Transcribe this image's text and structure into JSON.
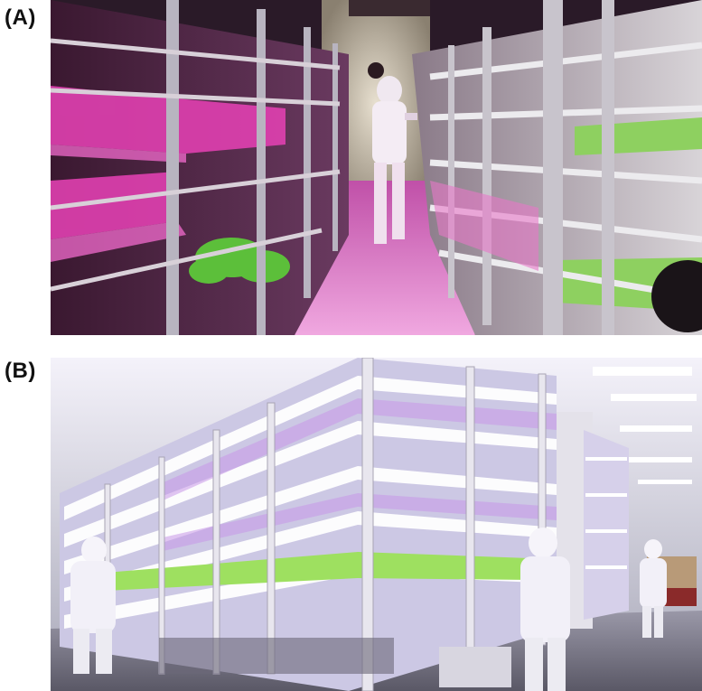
{
  "figure": {
    "panels": [
      {
        "label": "(A)"
      },
      {
        "label": "(B)"
      }
    ]
  },
  "colors": {
    "magenta_light": "#e040b0",
    "white_led": "#e8e4ff",
    "rack_silver": "#b8b4c0",
    "plant_green": "#5cbf3a"
  }
}
